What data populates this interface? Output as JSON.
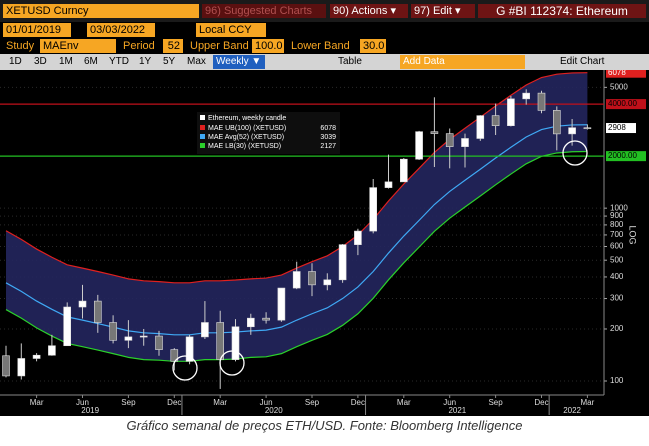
{
  "toolbar": {
    "security": "XETUSD Curncy",
    "suggested": "96) Suggested Charts",
    "actions": "90) Actions ▾",
    "edit": "97) Edit ▾",
    "ticker": "G #BI 112374: Ethereum",
    "start_date": "01/01/2019",
    "end_date": "03/03/2022",
    "currency": "Local CCY",
    "study_label": "Study",
    "study": "MAEnv",
    "period_label": "Period",
    "period": "52",
    "upper_label": "Upper Band",
    "upper": "100.0",
    "lower_label": "Lower Band",
    "lower": "30.0",
    "ranges": [
      "1D",
      "3D",
      "1M",
      "6M",
      "YTD",
      "1Y",
      "5Y",
      "Max"
    ],
    "frequency": "Weekly ▼",
    "table": "Table",
    "add_data": "Add Data",
    "edit_chart": "Edit Chart"
  },
  "chart_data": {
    "type": "candlestick",
    "categories": [
      null,
      null,
      "Mar",
      null,
      null,
      "Jun",
      null,
      null,
      "Sep",
      null,
      null,
      "Dec",
      null,
      null,
      "Mar",
      null,
      null,
      "Jun",
      null,
      null,
      "Sep",
      null,
      null,
      "Dec",
      null,
      null,
      "Mar",
      null,
      null,
      "Jun",
      null,
      null,
      "Sep",
      null,
      null,
      "Dec",
      null,
      null,
      "Mar"
    ],
    "year_labels": [
      "2019",
      "2020",
      "2021",
      "2022"
    ],
    "candles": {
      "name": "Ethereum, weekly candle",
      "open": [
        140,
        107,
        135,
        141,
        160,
        268,
        290,
        218,
        172,
        180,
        182,
        152,
        130,
        180,
        218,
        133,
        206,
        231,
        225,
        345,
        430,
        360,
        385,
        615,
        737,
        1315,
        1420,
        1920,
        2770,
        2700,
        2270,
        2530,
        3430,
        3000,
        4290,
        4630,
        3680,
        2690,
        2920
      ],
      "high": [
        160,
        165,
        145,
        185,
        285,
        360,
        315,
        240,
        225,
        200,
        195,
        155,
        185,
        290,
        255,
        228,
        245,
        250,
        345,
        490,
        480,
        420,
        620,
        760,
        1475,
        2040,
        1950,
        2800,
        4380,
        2890,
        2700,
        3450,
        4030,
        4460,
        4870,
        4780,
        3880,
        3280,
        3050
      ],
      "low": [
        105,
        102,
        130,
        140,
        160,
        230,
        190,
        165,
        155,
        160,
        140,
        115,
        125,
        175,
        90,
        130,
        185,
        215,
        220,
        340,
        310,
        335,
        370,
        535,
        715,
        1300,
        1430,
        1900,
        1730,
        1700,
        1720,
        2450,
        2650,
        2970,
        3970,
        3540,
        2160,
        2300,
        2850
      ],
      "close": [
        107,
        135,
        141,
        160,
        268,
        290,
        218,
        172,
        180,
        182,
        152,
        130,
        180,
        218,
        133,
        206,
        231,
        225,
        345,
        430,
        360,
        385,
        615,
        737,
        1315,
        1420,
        1920,
        2770,
        2700,
        2270,
        2530,
        3430,
        3000,
        4290,
        4630,
        3680,
        2690,
        2920,
        2908
      ]
    },
    "series": [
      {
        "name": "MAE UB(100) (XETUSD)",
        "color": "#e0201f",
        "values": [
          740,
          660,
          580,
          520,
          470,
          450,
          430,
          410,
          390,
          380,
          376,
          370,
          370,
          380,
          380,
          384,
          390,
          394,
          410,
          450,
          490,
          530,
          600,
          700,
          860,
          1100,
          1380,
          1700,
          2100,
          2500,
          2900,
          3360,
          3900,
          4500,
          5160,
          5700,
          5960,
          6060,
          6078
        ]
      },
      {
        "name": "MAE Avg(52) (XETUSD)",
        "color": "#3fa9f5",
        "values": [
          370,
          330,
          290,
          260,
          235,
          225,
          215,
          205,
          195,
          190,
          188,
          185,
          185,
          190,
          190,
          192,
          195,
          197,
          205,
          225,
          245,
          265,
          300,
          350,
          430,
          550,
          690,
          850,
          1050,
          1250,
          1450,
          1680,
          1950,
          2250,
          2580,
          2850,
          2980,
          3030,
          3039
        ]
      },
      {
        "name": "MAE LB(30) (XETUSD)",
        "color": "#2bd12b",
        "values": [
          259,
          231,
          203,
          182,
          165,
          158,
          151,
          144,
          137,
          133,
          132,
          130,
          130,
          133,
          133,
          134,
          137,
          138,
          144,
          158,
          172,
          186,
          210,
          245,
          301,
          385,
          483,
          595,
          735,
          875,
          1015,
          1176,
          1365,
          1575,
          1806,
          1995,
          2086,
          2121,
          2127
        ]
      }
    ],
    "band_fill": "#23265e",
    "ylim": [
      83,
      6300
    ],
    "log_scale": true,
    "scale_label": "LOG",
    "yticks": [
      100,
      200,
      300,
      400,
      500,
      600,
      700,
      800,
      900,
      1000,
      5000
    ],
    "grid": true,
    "lines": [
      {
        "value": 4000,
        "label": "4000.00",
        "color": "#c0101a"
      },
      {
        "value": 2000,
        "label": "2000.00",
        "color": "#22c022"
      }
    ]
  },
  "caption": "Gráfico semanal de preços ETH/USD. Fonte: Bloomberg Intelligence"
}
